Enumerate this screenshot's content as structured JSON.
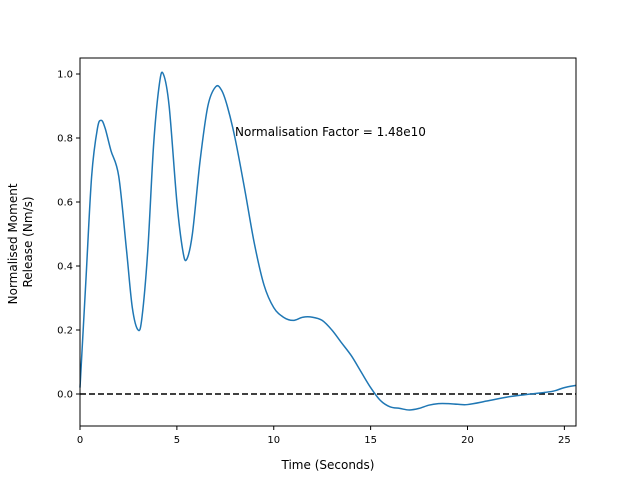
{
  "chart_data": {
    "type": "line",
    "title": "",
    "xlabel": "Time (Seconds)",
    "ylabel_lines": [
      "Normalised Moment",
      "Release (Nm/s)"
    ],
    "xlim": [
      0,
      25.6
    ],
    "ylim": [
      -0.1,
      1.05
    ],
    "xticks": [
      0,
      5,
      10,
      15,
      20,
      25
    ],
    "yticks": [
      0.0,
      0.2,
      0.4,
      0.6,
      0.8,
      1.0
    ],
    "xtick_labels": [
      "0",
      "5",
      "10",
      "15",
      "20",
      "25"
    ],
    "ytick_labels": [
      "0.0",
      "0.2",
      "0.4",
      "0.6",
      "0.8",
      "1.0"
    ],
    "grid": false,
    "annotation": {
      "text": "Normalisation Factor = 1.48e10",
      "x": 8.0,
      "y": 0.8
    },
    "reference_line": {
      "y": 0.0,
      "style": "dashed",
      "color": "#000000"
    },
    "series": [
      {
        "color": "#1f77b4",
        "x": [
          0,
          0.3,
          0.6,
          0.9,
          1.1,
          1.3,
          1.6,
          2.0,
          2.4,
          2.7,
          3.0,
          3.2,
          3.5,
          3.8,
          4.1,
          4.3,
          4.6,
          5.0,
          5.3,
          5.5,
          5.8,
          6.2,
          6.6,
          7.0,
          7.3,
          7.6,
          8.0,
          8.5,
          9.0,
          9.5,
          10.0,
          10.5,
          11.0,
          11.5,
          12.0,
          12.5,
          13.0,
          13.5,
          14.0,
          14.5,
          15.0,
          15.5,
          16.0,
          16.5,
          17.0,
          17.5,
          18.0,
          18.5,
          19.0,
          19.5,
          20.0,
          21.0,
          22.0,
          23.0,
          24.0,
          24.5,
          25.0,
          25.6
        ],
        "y": [
          0.02,
          0.35,
          0.68,
          0.83,
          0.855,
          0.83,
          0.76,
          0.68,
          0.45,
          0.27,
          0.2,
          0.24,
          0.45,
          0.78,
          0.97,
          1.0,
          0.9,
          0.6,
          0.45,
          0.42,
          0.5,
          0.73,
          0.9,
          0.96,
          0.95,
          0.9,
          0.8,
          0.64,
          0.47,
          0.34,
          0.27,
          0.24,
          0.23,
          0.24,
          0.24,
          0.23,
          0.2,
          0.16,
          0.12,
          0.07,
          0.02,
          -0.02,
          -0.04,
          -0.045,
          -0.05,
          -0.045,
          -0.035,
          -0.03,
          -0.03,
          -0.032,
          -0.033,
          -0.022,
          -0.01,
          -0.002,
          0.005,
          0.01,
          0.02,
          0.027
        ]
      }
    ]
  }
}
